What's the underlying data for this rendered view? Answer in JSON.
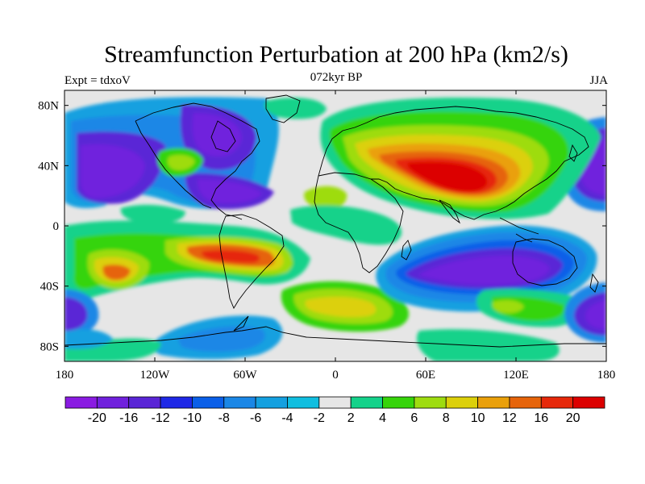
{
  "title": "Streamfunction Perturbation at 200 hPa (km2/s)",
  "subtitle_left": "Expt = tdxoV",
  "subtitle_center": "072kyr BP",
  "subtitle_right": "JJA",
  "axes": {
    "x_ticks": [
      "180",
      "120W",
      "60W",
      "0",
      "60E",
      "120E",
      "180"
    ],
    "y_ticks": [
      "80N",
      "40N",
      "0",
      "40S",
      "80S"
    ]
  },
  "colorbar": {
    "labels": [
      "-20",
      "-16",
      "-12",
      "-10",
      "-8",
      "-6",
      "-4",
      "-2",
      "2",
      "4",
      "6",
      "8",
      "10",
      "12",
      "16",
      "20"
    ],
    "colors": [
      "#8a1be2",
      "#7020dd",
      "#5a25d6",
      "#1e28e6",
      "#0a5fe8",
      "#1a87e6",
      "#14a0e0",
      "#10bee0",
      "#e6e6e6",
      "#14d28a",
      "#36d40a",
      "#9edc10",
      "#dcd00a",
      "#eaa00a",
      "#e6640a",
      "#e6280a",
      "#dc0000"
    ]
  },
  "map_colors": {
    "neutral": "#e6e6e6",
    "coast": "#000000"
  }
}
